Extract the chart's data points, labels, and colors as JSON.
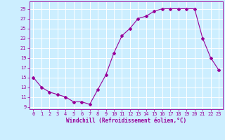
{
  "x": [
    0,
    1,
    2,
    3,
    4,
    5,
    6,
    7,
    8,
    9,
    10,
    11,
    12,
    13,
    14,
    15,
    16,
    17,
    18,
    19,
    20,
    21,
    22,
    23
  ],
  "y": [
    15,
    13,
    12,
    11.5,
    11,
    10,
    10,
    9.5,
    12.5,
    15.5,
    20,
    23.5,
    25,
    27,
    27.5,
    28.5,
    29,
    29,
    29,
    29,
    29,
    23,
    19,
    16.5
  ],
  "line_color": "#990099",
  "marker": "D",
  "marker_size": 2,
  "bg_color": "#cceeff",
  "grid_color": "#ffffff",
  "xlabel": "Windchill (Refroidissement éolien,°C)",
  "xlabel_color": "#990099",
  "tick_color": "#990099",
  "label_fontsize": 5,
  "xlabel_fontsize": 5.5,
  "ylim": [
    8.5,
    30.5
  ],
  "yticks": [
    9,
    11,
    13,
    15,
    17,
    19,
    21,
    23,
    25,
    27,
    29
  ],
  "xlim": [
    -0.5,
    23.5
  ],
  "xticks": [
    0,
    1,
    2,
    3,
    4,
    5,
    6,
    7,
    8,
    9,
    10,
    11,
    12,
    13,
    14,
    15,
    16,
    17,
    18,
    19,
    20,
    21,
    22,
    23
  ]
}
